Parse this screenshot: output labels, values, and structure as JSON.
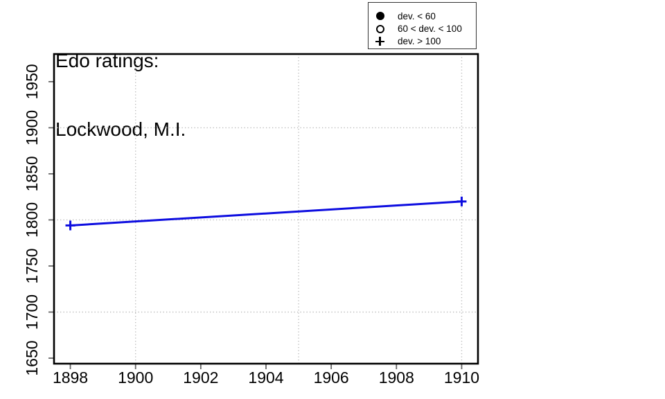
{
  "page": {
    "background": "#ffffff"
  },
  "title": {
    "line1": "Edo ratings:",
    "line2": "Lockwood, M.I."
  },
  "legend": {
    "items": [
      {
        "symbol": "filled-circle",
        "label": "dev. < 60"
      },
      {
        "symbol": "open-circle",
        "label": "60 < dev. < 100"
      },
      {
        "symbol": "plus",
        "label": "dev. > 100"
      }
    ]
  },
  "chart_data": {
    "type": "line",
    "title": "Edo ratings: Lockwood, M.I.",
    "xlabel": "",
    "ylabel": "",
    "x": [
      1898,
      1910
    ],
    "series": [
      {
        "name": "Edo rating",
        "values": [
          1794,
          1820
        ],
        "marker": "plus",
        "marker_meaning": "dev. > 100",
        "color": "#0d0de0",
        "line_width": 3
      }
    ],
    "xlim": [
      1897.5,
      1910.5
    ],
    "ylim": [
      1644,
      1980
    ],
    "x_ticks": [
      1898,
      1900,
      1902,
      1904,
      1906,
      1908,
      1910
    ],
    "y_ticks": [
      1650,
      1700,
      1750,
      1800,
      1850,
      1900,
      1950
    ],
    "grid_x": [
      1900,
      1905,
      1910
    ],
    "grid_y": [
      1700,
      1800,
      1900
    ],
    "grid_on": true,
    "grid_color": "#b9b9b9",
    "grid_style": "dotted",
    "axis_color": "#000000",
    "tick_color": "#666666",
    "legend_position": "top-right"
  }
}
